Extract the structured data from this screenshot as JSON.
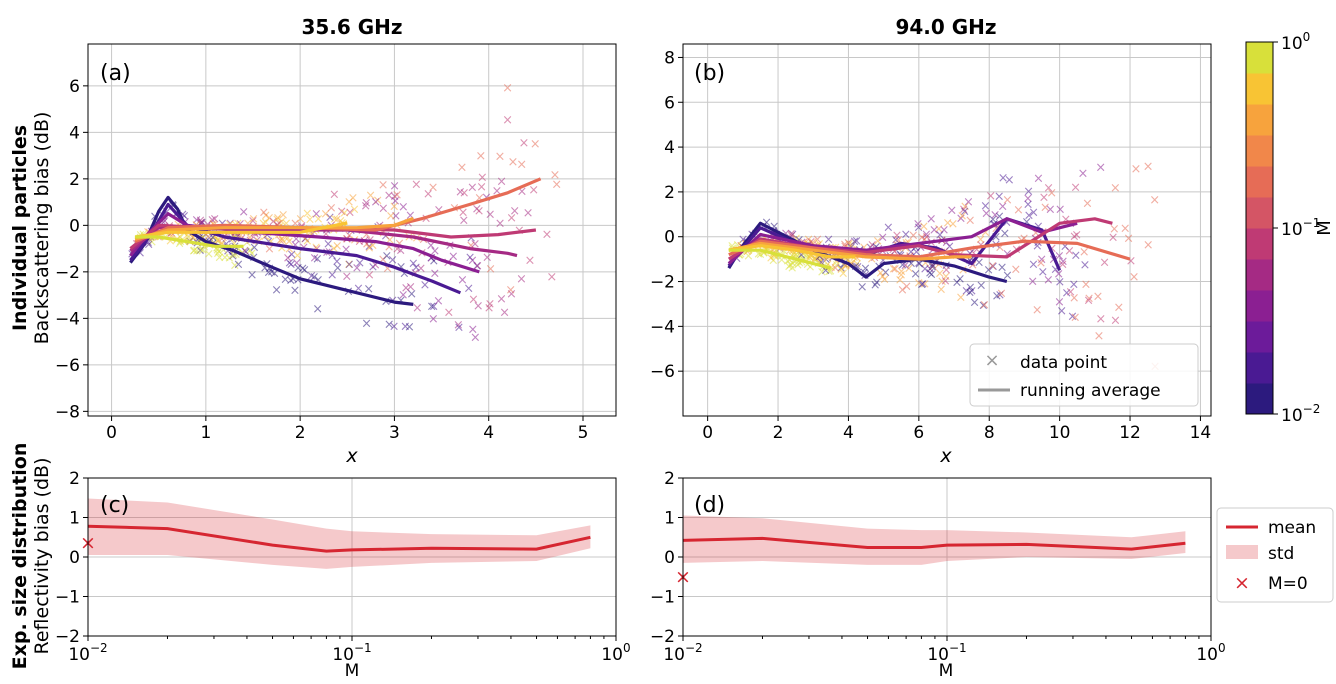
{
  "figure": {
    "row_label_bold_top": "Individual particles",
    "row_label_top": "Backscattering bias (dB)",
    "row_label_bold_bottom": "Exp. size distribution",
    "row_label_bottom": "Reflectivity bias (dB)"
  },
  "colorbar": {
    "label": "M",
    "ticks": [
      {
        "base": "10",
        "exp": "0",
        "value": 1
      },
      {
        "base": "10",
        "exp": "−1",
        "value": 0.1
      },
      {
        "base": "10",
        "exp": "−2",
        "value": 0.01
      }
    ],
    "colors": [
      "#2c1a7e",
      "#4a1a93",
      "#6c1b9a",
      "#8b1f92",
      "#a52a84",
      "#bf3a74",
      "#d45565",
      "#e66c56",
      "#f1874a",
      "#f7a33d",
      "#f8c434",
      "#d8e03a"
    ]
  },
  "chart_data": [
    {
      "id": "a",
      "type": "scatter",
      "panel_label": "(a)",
      "title": "35.6 GHz",
      "xlabel": "x",
      "ylabel": "Backscattering bias (dB)",
      "xlim": [
        -0.25,
        5.35
      ],
      "ylim": [
        -8.2,
        7.8
      ],
      "xticks": [
        0,
        1,
        2,
        3,
        4,
        5
      ],
      "yticks": [
        -8,
        -6,
        -4,
        -2,
        0,
        2,
        4,
        6
      ],
      "grid": true,
      "running_average": [
        {
          "color": "#2c1a7e",
          "x": [
            0.2,
            0.35,
            0.5,
            0.6,
            0.7,
            0.8,
            1.0,
            1.3,
            1.7,
            2.0,
            2.5,
            3.0,
            3.2
          ],
          "y": [
            -1.6,
            -0.8,
            0.6,
            1.2,
            0.7,
            -0.2,
            -0.7,
            -1.1,
            -1.8,
            -2.3,
            -2.8,
            -3.3,
            -3.4
          ]
        },
        {
          "color": "#4a1a93",
          "x": [
            0.2,
            0.4,
            0.6,
            0.8,
            1.2,
            2.0,
            2.6,
            3.0,
            3.4,
            3.7
          ],
          "y": [
            -1.5,
            -0.5,
            0.9,
            0.0,
            -0.5,
            -1.0,
            -1.3,
            -1.8,
            -2.4,
            -2.9
          ]
        },
        {
          "color": "#8b1f92",
          "x": [
            0.2,
            0.4,
            0.6,
            0.8,
            1.5,
            2.2,
            2.8,
            3.2,
            3.5,
            3.9
          ],
          "y": [
            -1.3,
            -0.3,
            0.5,
            0.0,
            -0.3,
            -0.5,
            -0.7,
            -1.0,
            -1.5,
            -2.0
          ]
        },
        {
          "color": "#a52a84",
          "x": [
            0.2,
            0.5,
            0.8,
            1.5,
            2.5,
            3.2,
            3.8,
            4.2,
            4.3
          ],
          "y": [
            -1.1,
            -0.1,
            -0.1,
            -0.2,
            -0.2,
            -0.5,
            -1.0,
            -1.2,
            -1.3
          ]
        },
        {
          "color": "#bf3a74",
          "x": [
            0.2,
            0.5,
            1.0,
            2.0,
            3.0,
            3.6,
            4.1,
            4.5
          ],
          "y": [
            -1.0,
            0.0,
            -0.1,
            -0.1,
            -0.2,
            -0.5,
            -0.4,
            -0.2
          ]
        },
        {
          "color": "#e66c56",
          "x": [
            0.25,
            0.6,
            1.2,
            2.0,
            2.8,
            3.3,
            3.8,
            4.2,
            4.55
          ],
          "y": [
            -0.7,
            -0.1,
            0.0,
            -0.1,
            -0.2,
            0.3,
            0.9,
            1.4,
            2.0
          ]
        },
        {
          "color": "#f7a33d",
          "x": [
            0.25,
            0.6,
            1.2,
            2.0,
            2.6,
            3.0,
            3.2
          ],
          "y": [
            -0.6,
            -0.2,
            -0.1,
            -0.1,
            -0.1,
            0.0,
            0.3
          ]
        },
        {
          "color": "#f8c434",
          "x": [
            0.25,
            0.6,
            1.2,
            2.0,
            2.5
          ],
          "y": [
            -0.5,
            -0.3,
            -0.3,
            -0.3,
            0.1
          ]
        },
        {
          "color": "#d8e03a",
          "x": [
            0.25,
            0.5,
            0.8,
            1.1,
            1.4
          ],
          "y": [
            -0.5,
            -0.5,
            -0.7,
            -0.9,
            -0.9
          ]
        }
      ],
      "scatter_spec": {
        "xmin": 0.15,
        "xmax": 5.1,
        "count": 480
      }
    },
    {
      "id": "b",
      "type": "scatter",
      "panel_label": "(b)",
      "title": "94.0 GHz",
      "xlabel": "x",
      "ylabel": "",
      "xlim": [
        -0.7,
        14.3
      ],
      "ylim": [
        -8.0,
        8.6
      ],
      "xticks": [
        0,
        2,
        4,
        6,
        8,
        10,
        12,
        14
      ],
      "yticks": [
        -6,
        -4,
        -2,
        0,
        2,
        4,
        6,
        8
      ],
      "grid": true,
      "running_average": [
        {
          "color": "#2c1a7e",
          "x": [
            0.6,
            1.0,
            1.5,
            2.0,
            3.0,
            4.0,
            4.5,
            5.0,
            6.0,
            7.0,
            8.0,
            8.5
          ],
          "y": [
            -1.4,
            -0.4,
            0.6,
            0.2,
            -0.6,
            -1.2,
            -1.8,
            -1.2,
            -1.0,
            -1.3,
            -1.8,
            -2.0
          ]
        },
        {
          "color": "#4a1a93",
          "x": [
            0.6,
            1.0,
            1.5,
            2.5,
            3.5,
            4.5,
            5.5,
            6.5,
            7.5,
            8.5,
            9.5,
            10.0
          ],
          "y": [
            -1.3,
            -0.5,
            0.4,
            -0.3,
            -0.6,
            -0.8,
            -0.3,
            -0.5,
            -1.2,
            0.8,
            0.3,
            -1.5
          ]
        },
        {
          "color": "#8b1f92",
          "x": [
            0.6,
            1.5,
            3.0,
            4.5,
            6.0,
            7.5,
            8.5,
            9.5,
            10.5
          ],
          "y": [
            -1.2,
            0.1,
            -0.4,
            -0.6,
            -0.3,
            0.0,
            0.8,
            0.2,
            0.6
          ]
        },
        {
          "color": "#bf3a74",
          "x": [
            0.6,
            1.5,
            3.0,
            4.5,
            6.0,
            7.0,
            8.5,
            10.0,
            11.0,
            11.5
          ],
          "y": [
            -1.0,
            -0.1,
            -0.5,
            -0.7,
            -0.4,
            -0.8,
            -0.9,
            0.6,
            0.8,
            0.6
          ]
        },
        {
          "color": "#e66c56",
          "x": [
            0.6,
            1.5,
            3.0,
            4.5,
            6.0,
            7.5,
            9.0,
            10.5,
            12.0
          ],
          "y": [
            -0.8,
            -0.2,
            -0.5,
            -0.8,
            -0.9,
            -0.5,
            -0.2,
            -0.3,
            -1.0
          ]
        },
        {
          "color": "#f7a33d",
          "x": [
            0.6,
            1.5,
            3.0,
            4.5,
            6.0,
            7.0,
            7.5
          ],
          "y": [
            -0.6,
            -0.3,
            -0.6,
            -0.9,
            -1.0,
            -0.9,
            -0.9
          ]
        },
        {
          "color": "#f8c434",
          "x": [
            0.6,
            1.5,
            2.5,
            3.5,
            4.2
          ],
          "y": [
            -0.6,
            -0.4,
            -0.6,
            -0.9,
            -0.9
          ]
        },
        {
          "color": "#d8e03a",
          "x": [
            0.6,
            1.5,
            2.5,
            3.5
          ],
          "y": [
            -0.6,
            -0.6,
            -1.0,
            -1.4
          ]
        }
      ],
      "scatter_spec": {
        "xmin": 0.5,
        "xmax": 13.4,
        "count": 480
      },
      "legend": {
        "placement": "lower-right",
        "entries": [
          {
            "label": "data point",
            "kind": "marker"
          },
          {
            "label": "running average",
            "kind": "line"
          }
        ]
      }
    },
    {
      "id": "c",
      "type": "line",
      "panel_label": "(c)",
      "title": "",
      "xlabel": "M",
      "ylabel": "Reflectivity bias (dB)",
      "xscale": "log",
      "xlim": [
        0.01,
        1.0
      ],
      "ylim": [
        -2,
        2
      ],
      "xticks": [
        {
          "base": "10",
          "exp": "−2",
          "value": 0.01
        },
        {
          "base": "10",
          "exp": "−1",
          "value": 0.1
        },
        {
          "base": "10",
          "exp": "0",
          "value": 1
        }
      ],
      "yticks": [
        -2,
        -1,
        0,
        1,
        2
      ],
      "grid": true,
      "series": [
        {
          "name": "mean",
          "x": [
            0.01,
            0.02,
            0.05,
            0.08,
            0.1,
            0.2,
            0.5,
            0.8
          ],
          "y": [
            0.78,
            0.72,
            0.3,
            0.15,
            0.18,
            0.22,
            0.2,
            0.5
          ],
          "std_upper": [
            1.48,
            1.38,
            0.95,
            0.72,
            0.65,
            0.58,
            0.55,
            0.8
          ],
          "std_lower": [
            0.05,
            0.05,
            -0.2,
            -0.3,
            -0.25,
            -0.15,
            -0.1,
            0.22
          ]
        }
      ],
      "m0_point": {
        "x": 0.01,
        "y": 0.35
      }
    },
    {
      "id": "d",
      "type": "line",
      "panel_label": "(d)",
      "title": "",
      "xlabel": "M",
      "ylabel": "",
      "xscale": "log",
      "xlim": [
        0.01,
        1.0
      ],
      "ylim": [
        -2,
        2
      ],
      "xticks": [
        {
          "base": "10",
          "exp": "−2",
          "value": 0.01
        },
        {
          "base": "10",
          "exp": "−1",
          "value": 0.1
        },
        {
          "base": "10",
          "exp": "0",
          "value": 1
        }
      ],
      "yticks": [
        -2,
        -1,
        0,
        1,
        2
      ],
      "grid": true,
      "series": [
        {
          "name": "mean",
          "x": [
            0.01,
            0.02,
            0.05,
            0.08,
            0.1,
            0.2,
            0.5,
            0.8
          ],
          "y": [
            0.42,
            0.47,
            0.24,
            0.24,
            0.3,
            0.32,
            0.2,
            0.35
          ],
          "std_upper": [
            1.05,
            0.98,
            0.72,
            0.68,
            0.68,
            0.62,
            0.5,
            0.65
          ],
          "std_lower": [
            -0.15,
            -0.1,
            -0.2,
            -0.2,
            -0.1,
            0.0,
            -0.05,
            0.1
          ]
        }
      ],
      "m0_point": {
        "x": 0.01,
        "y": -0.5
      },
      "legend": {
        "placement": "outside-right",
        "entries": [
          {
            "label": "mean",
            "kind": "line"
          },
          {
            "label": "std",
            "kind": "patch"
          },
          {
            "label": "M=0",
            "kind": "marker"
          }
        ]
      }
    }
  ]
}
